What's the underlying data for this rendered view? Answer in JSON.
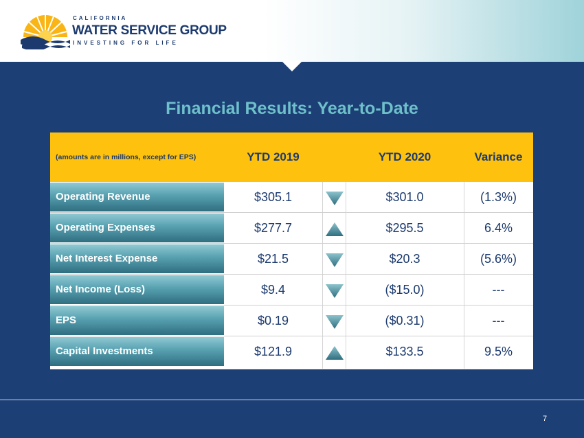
{
  "logo": {
    "line1": "CALIFORNIA",
    "line2": "WATER SERVICE GROUP",
    "line3": "INVESTING FOR LIFE",
    "icon": "sun-wave-logo-icon",
    "colors": {
      "sun": "#f9b515",
      "wave": "#1c3a6e"
    }
  },
  "title": "Financial Results: Year-to-Date",
  "table": {
    "note": "(amounts are in millions, except for EPS)",
    "col_ytd2019": "YTD 2019",
    "col_ytd2020": "YTD 2020",
    "col_variance": "Variance",
    "rows": [
      {
        "label": "Operating Revenue",
        "ytd2019": "$305.1",
        "direction": "down",
        "ytd2020": "$301.0",
        "variance": "(1.3%)"
      },
      {
        "label": "Operating Expenses",
        "ytd2019": "$277.7",
        "direction": "up",
        "ytd2020": "$295.5",
        "variance": "6.4%"
      },
      {
        "label": "Net Interest Expense",
        "ytd2019": "$21.5",
        "direction": "down",
        "ytd2020": "$20.3",
        "variance": "(5.6%)"
      },
      {
        "label": "Net Income (Loss)",
        "ytd2019": "$9.4",
        "direction": "down",
        "ytd2020": "($15.0)",
        "variance": "---"
      },
      {
        "label": "EPS",
        "ytd2019": "$0.19",
        "direction": "down",
        "ytd2020": "($0.31)",
        "variance": "---"
      },
      {
        "label": "Capital Investments",
        "ytd2019": "$121.9",
        "direction": "up",
        "ytd2020": "$133.5",
        "variance": "9.5%"
      }
    ]
  },
  "colors": {
    "background": "#1c4076",
    "header_row": "#fec20e",
    "title": "#6fc0cb",
    "text": "#1c3a6e"
  },
  "page_number": "7"
}
